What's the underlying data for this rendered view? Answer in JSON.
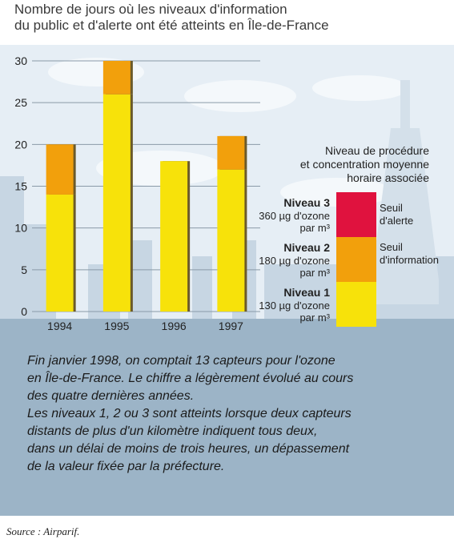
{
  "title_lines": [
    "Nombre de jours où les niveaux d'information",
    "du public et d'alerte ont été atteints en Île-de-France"
  ],
  "chart_data": {
    "type": "bar",
    "stacked": true,
    "categories": [
      "1994",
      "1995",
      "1996",
      "1997"
    ],
    "series": [
      {
        "name": "Niveau 1",
        "color": "#f7e20a",
        "values": [
          14,
          26,
          18,
          17
        ]
      },
      {
        "name": "Niveau 2",
        "color": "#f2a00c",
        "values": [
          6,
          4,
          0,
          4
        ]
      },
      {
        "name": "Niveau 3",
        "color": "#e0123e",
        "values": [
          0,
          0,
          0,
          0
        ]
      }
    ],
    "ylim": [
      0,
      30
    ],
    "yticks": [
      "0",
      "5",
      "10",
      "15",
      "20",
      "25",
      "30"
    ],
    "grid": true,
    "legend_title_lines": [
      "Niveau de procédure",
      "et concentration moyenne",
      "horaire associée"
    ],
    "legend": [
      {
        "name": "Niveau 3",
        "value_line": "360 µg d'ozone",
        "unit_line": "par m³",
        "color": "#e0123e"
      },
      {
        "name": "Niveau 2",
        "value_line": "180 µg d'ozone",
        "unit_line": "par m³",
        "color": "#f2a00c"
      },
      {
        "name": "Niveau 1",
        "value_line": "130 µg d'ozone",
        "unit_line": "par m³",
        "color": "#f7e20a"
      }
    ],
    "thresholds": [
      {
        "lines": [
          "Seuil",
          "d'alerte"
        ]
      },
      {
        "lines": [
          "Seuil",
          "d'information"
        ]
      }
    ]
  },
  "caption_lines": [
    "Fin janvier 1998, on comptait 13 capteurs pour l'ozone",
    "en Île-de-France. Le chiffre a légèrement évolué au cours",
    "des quatre dernières années.",
    "Les niveaux 1, 2 ou 3 sont atteints lorsque deux capteurs",
    "distants de plus d'un kilomètre indiquent tous deux,",
    "dans un délai de moins de trois heures, un dépassement",
    "de la valeur fixée par la préfecture."
  ],
  "source": "Source : Airparif.",
  "colors": {
    "sky": "#e6eef5",
    "silhouette": "#c7d6e3",
    "panel": "#9cb4c7",
    "grid": "#8a9aa8"
  }
}
